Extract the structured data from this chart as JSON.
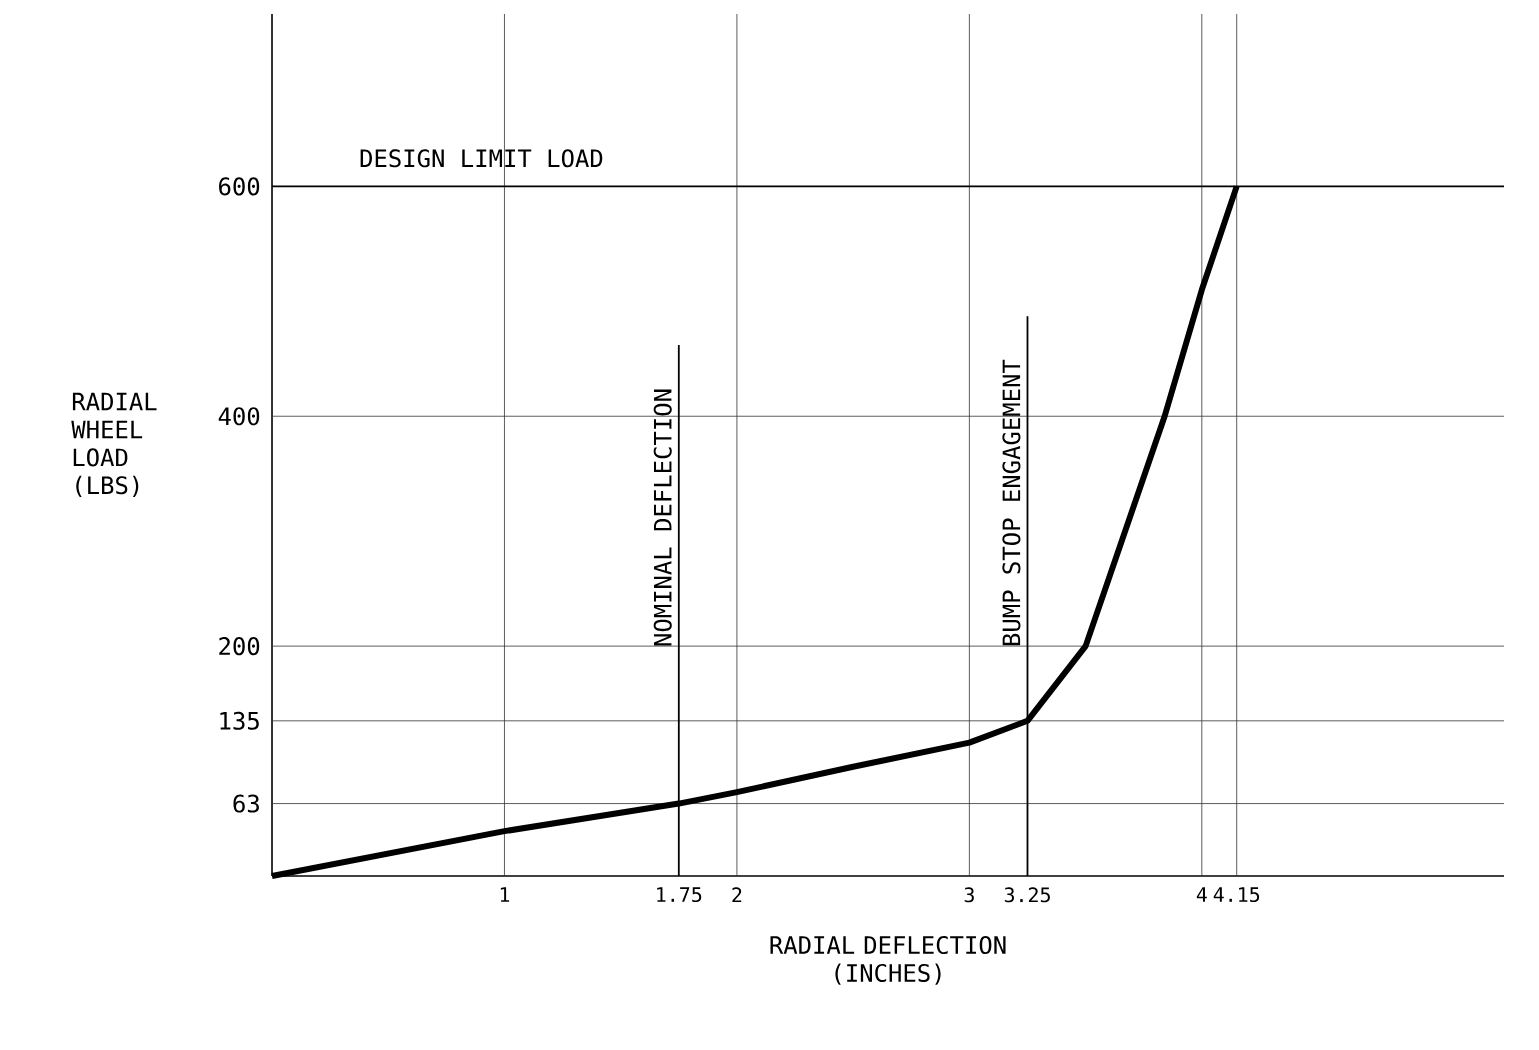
{
  "chart_data": {
    "type": "line",
    "xlabel": "RADIAL DEFLECTION (INCHES)",
    "ylabel": "RADIAL WHEEL LOAD (LBS)",
    "x": [
      0,
      1,
      1.75,
      2,
      2.5,
      3,
      3.25,
      3.5,
      3.84,
      4,
      4.15
    ],
    "series": [
      {
        "color": "#000000",
        "values": [
          0,
          39,
          63,
          73,
          95,
          116,
          135,
          200,
          400,
          510,
          600
        ]
      }
    ],
    "xlim": [
      0,
      5.3
    ],
    "ylim": [
      0,
      750
    ],
    "xticks": [
      1,
      1.75,
      2,
      3,
      3.25,
      4,
      4.15
    ],
    "yticks": [
      63,
      135,
      200,
      400,
      600
    ],
    "grid": true,
    "marker": "none",
    "line_style": "solid",
    "ref_lines": [
      {
        "axis": "y",
        "value": 600,
        "label": "DESIGN LIMIT LOAD"
      },
      {
        "axis": "x",
        "value": 1.75,
        "label": "NOMINAL DEFLECTION"
      },
      {
        "axis": "x",
        "value": 3.25,
        "label": "BUMP STOP ENGAGEMENT"
      }
    ]
  }
}
